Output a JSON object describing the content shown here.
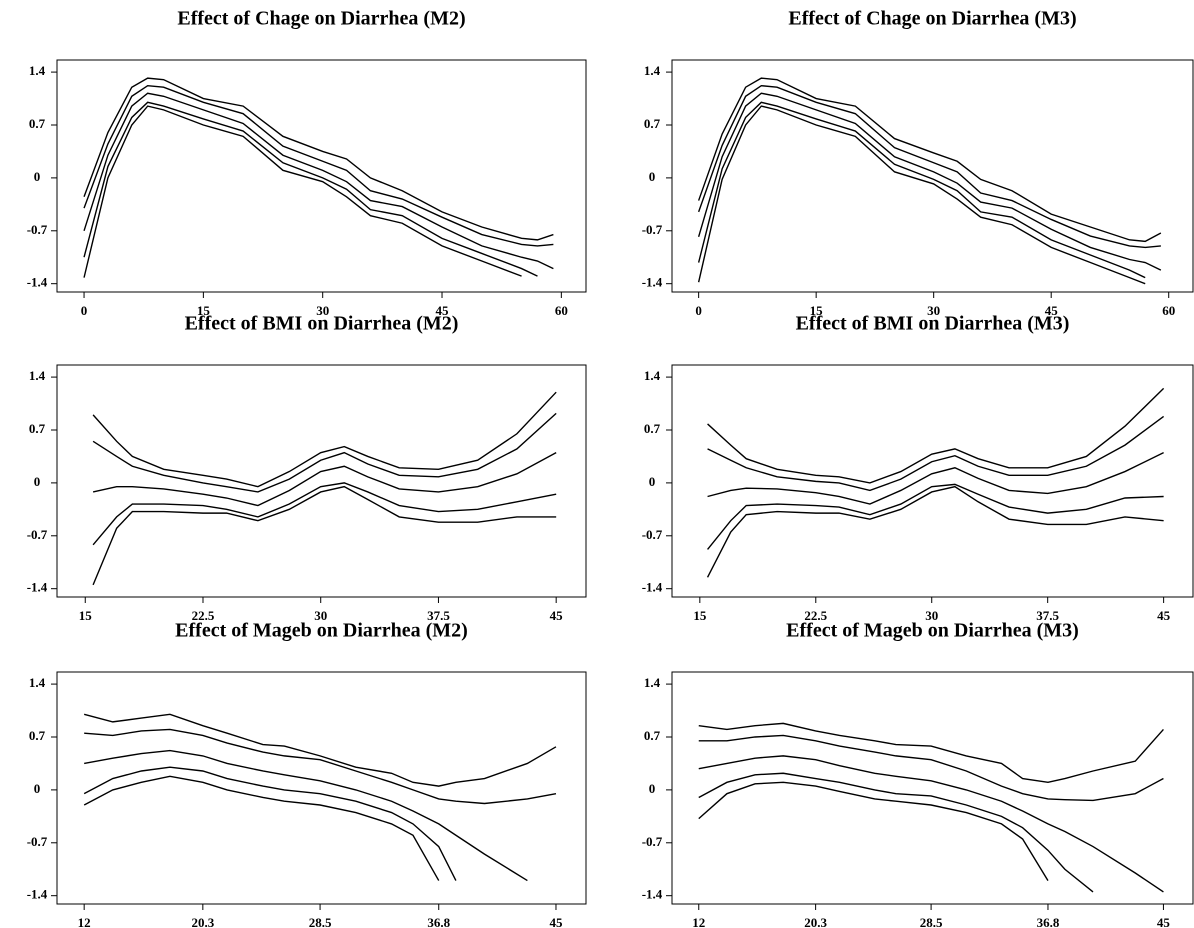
{
  "chart_data": [
    {
      "type": "line",
      "title": "Effect of Chage on Diarrhea (M2)",
      "color": "#000000",
      "x": [
        0,
        3,
        6,
        8,
        10,
        15,
        20,
        25,
        30,
        33,
        36,
        40,
        45,
        50,
        55,
        57,
        59
      ],
      "xlim": [
        -3.4,
        63.1
      ],
      "xticks": [
        0,
        15,
        30,
        45,
        60
      ],
      "ylim": [
        -1.51,
        1.56
      ],
      "yticks": [
        -1.4,
        -0.7,
        0,
        0.7,
        1.4
      ],
      "series": [
        {
          "values": [
            -0.25,
            0.6,
            1.2,
            1.32,
            1.3,
            1.05,
            0.95,
            0.55,
            0.35,
            0.25,
            0,
            -0.17,
            -0.45,
            -0.65,
            -0.8,
            -0.82,
            -0.75
          ]
        },
        {
          "values": [
            -0.4,
            0.45,
            1.08,
            1.22,
            1.2,
            1.0,
            0.85,
            0.42,
            0.22,
            0.1,
            -0.17,
            -0.28,
            -0.52,
            -0.75,
            -0.88,
            -0.9,
            -0.88
          ]
        },
        {
          "values": [
            -0.7,
            0.3,
            0.95,
            1.12,
            1.08,
            0.9,
            0.72,
            0.3,
            0.1,
            -0.05,
            -0.3,
            -0.38,
            -0.65,
            -0.9,
            -1.05,
            -1.1,
            -1.2
          ]
        },
        {
          "values": [
            -1.05,
            0.15,
            0.8,
            1.0,
            0.95,
            0.78,
            0.62,
            0.2,
            0.0,
            -0.15,
            -0.42,
            -0.5,
            -0.8,
            -1.0,
            -1.2,
            -1.3,
            null
          ]
        },
        {
          "values": [
            -1.32,
            0.0,
            0.7,
            0.95,
            0.9,
            0.7,
            0.55,
            0.1,
            -0.05,
            -0.25,
            -0.5,
            -0.6,
            -0.9,
            -1.1,
            -1.3,
            null,
            null
          ]
        }
      ]
    },
    {
      "type": "line",
      "title": "Effect of Chage on Diarrhea (M3)",
      "color": "#000000",
      "x": [
        0,
        3,
        6,
        8,
        10,
        15,
        20,
        25,
        30,
        33,
        36,
        40,
        45,
        50,
        55,
        57,
        59
      ],
      "xlim": [
        -3.4,
        63.1
      ],
      "xticks": [
        0,
        15,
        30,
        45,
        60
      ],
      "ylim": [
        -1.51,
        1.56
      ],
      "yticks": [
        -1.4,
        -0.7,
        0,
        0.7,
        1.4
      ],
      "series": [
        {
          "values": [
            -0.3,
            0.58,
            1.2,
            1.32,
            1.3,
            1.05,
            0.95,
            0.52,
            0.33,
            0.22,
            -0.02,
            -0.17,
            -0.48,
            -0.65,
            -0.82,
            -0.84,
            -0.73
          ]
        },
        {
          "values": [
            -0.45,
            0.43,
            1.08,
            1.22,
            1.2,
            1.0,
            0.85,
            0.4,
            0.2,
            0.08,
            -0.2,
            -0.3,
            -0.55,
            -0.77,
            -0.9,
            -0.92,
            -0.9
          ]
        },
        {
          "values": [
            -0.78,
            0.28,
            0.95,
            1.12,
            1.08,
            0.9,
            0.72,
            0.28,
            0.08,
            -0.07,
            -0.32,
            -0.4,
            -0.68,
            -0.92,
            -1.08,
            -1.12,
            -1.22
          ]
        },
        {
          "values": [
            -1.12,
            0.12,
            0.8,
            1.0,
            0.95,
            0.78,
            0.62,
            0.18,
            -0.02,
            -0.17,
            -0.45,
            -0.52,
            -0.82,
            -1.02,
            -1.22,
            -1.32,
            null
          ]
        },
        {
          "values": [
            -1.38,
            -0.02,
            0.7,
            0.95,
            0.9,
            0.7,
            0.55,
            0.08,
            -0.08,
            -0.28,
            -0.52,
            -0.62,
            -0.92,
            -1.12,
            -1.32,
            -1.4,
            null
          ]
        }
      ]
    },
    {
      "type": "line",
      "title": "Effect of BMI on Diarrhea (M2)",
      "color": "#000000",
      "x": [
        15.5,
        17,
        18,
        20,
        22.5,
        24,
        26,
        28,
        30,
        31.5,
        33,
        35,
        37.5,
        40,
        42.5,
        45
      ],
      "xlim": [
        13.2,
        46.9
      ],
      "xticks": [
        15,
        22.5,
        30,
        37.5,
        45
      ],
      "ylim": [
        -1.51,
        1.56
      ],
      "yticks": [
        -1.4,
        -0.7,
        0,
        0.7,
        1.4
      ],
      "series": [
        {
          "values": [
            0.9,
            0.55,
            0.35,
            0.18,
            0.1,
            0.05,
            -0.05,
            0.15,
            0.4,
            0.48,
            0.35,
            0.2,
            0.18,
            0.3,
            0.65,
            1.2
          ]
        },
        {
          "values": [
            0.55,
            0.35,
            0.22,
            0.1,
            0,
            -0.05,
            -0.12,
            0.05,
            0.3,
            0.4,
            0.25,
            0.1,
            0.08,
            0.18,
            0.45,
            0.92
          ]
        },
        {
          "values": [
            -0.12,
            -0.05,
            -0.05,
            -0.08,
            -0.15,
            -0.2,
            -0.3,
            -0.1,
            0.15,
            0.22,
            0.08,
            -0.08,
            -0.12,
            -0.05,
            0.12,
            0.4
          ]
        },
        {
          "values": [
            -0.82,
            -0.45,
            -0.28,
            -0.28,
            -0.3,
            -0.35,
            -0.45,
            -0.28,
            -0.05,
            0.0,
            -0.12,
            -0.3,
            -0.38,
            -0.35,
            -0.25,
            -0.15
          ]
        },
        {
          "values": [
            -1.35,
            -0.6,
            -0.38,
            -0.38,
            -0.4,
            -0.4,
            -0.5,
            -0.35,
            -0.12,
            -0.05,
            -0.22,
            -0.45,
            -0.52,
            -0.52,
            -0.45,
            -0.45
          ]
        }
      ]
    },
    {
      "type": "line",
      "title": "Effect of BMI on Diarrhea (M3)",
      "color": "#000000",
      "x": [
        15.5,
        17,
        18,
        20,
        22.5,
        24,
        26,
        28,
        30,
        31.5,
        33,
        35,
        37.5,
        40,
        42.5,
        45
      ],
      "xlim": [
        13.2,
        46.9
      ],
      "xticks": [
        15,
        22.5,
        30,
        37.5,
        45
      ],
      "ylim": [
        -1.51,
        1.56
      ],
      "yticks": [
        -1.4,
        -0.7,
        0,
        0.7,
        1.4
      ],
      "series": [
        {
          "values": [
            0.78,
            0.5,
            0.32,
            0.18,
            0.1,
            0.08,
            0.0,
            0.15,
            0.38,
            0.45,
            0.32,
            0.2,
            0.2,
            0.35,
            0.75,
            1.25
          ]
        },
        {
          "values": [
            0.45,
            0.3,
            0.2,
            0.08,
            0.02,
            0.0,
            -0.1,
            0.05,
            0.28,
            0.36,
            0.22,
            0.1,
            0.1,
            0.22,
            0.5,
            0.88
          ]
        },
        {
          "values": [
            -0.18,
            -0.1,
            -0.07,
            -0.08,
            -0.13,
            -0.18,
            -0.28,
            -0.1,
            0.12,
            0.2,
            0.06,
            -0.1,
            -0.14,
            -0.05,
            0.15,
            0.4
          ]
        },
        {
          "values": [
            -0.88,
            -0.5,
            -0.3,
            -0.28,
            -0.3,
            -0.32,
            -0.42,
            -0.28,
            -0.05,
            -0.02,
            -0.15,
            -0.32,
            -0.4,
            -0.35,
            -0.2,
            -0.18
          ]
        },
        {
          "values": [
            -1.25,
            -0.65,
            -0.42,
            -0.38,
            -0.4,
            -0.4,
            -0.48,
            -0.35,
            -0.12,
            -0.05,
            -0.25,
            -0.48,
            -0.55,
            -0.55,
            -0.45,
            -0.5
          ]
        }
      ]
    },
    {
      "type": "line",
      "title": "Effect of Mageb on Diarrhea (M2)",
      "color": "#000000",
      "x": [
        12,
        14,
        16,
        18,
        20.3,
        22,
        24.5,
        26,
        28.5,
        31,
        33.5,
        35,
        36.8,
        38,
        40,
        43,
        45
      ],
      "xlim": [
        10.1,
        47.1
      ],
      "xticks": [
        12,
        20.3,
        28.5,
        36.8,
        45
      ],
      "ylim": [
        -1.51,
        1.56
      ],
      "yticks": [
        -1.4,
        -0.7,
        0,
        0.7,
        1.4
      ],
      "series": [
        {
          "values": [
            1.0,
            0.9,
            0.95,
            1.0,
            0.85,
            0.75,
            0.6,
            0.58,
            0.45,
            0.3,
            0.22,
            0.1,
            0.05,
            0.1,
            0.15,
            0.35,
            0.57
          ]
        },
        {
          "values": [
            0.75,
            0.72,
            0.78,
            0.8,
            0.72,
            0.62,
            0.5,
            0.45,
            0.4,
            0.25,
            0.1,
            0,
            -0.12,
            -0.15,
            -0.18,
            -0.12,
            -0.05
          ]
        },
        {
          "values": [
            0.35,
            0.42,
            0.48,
            0.52,
            0.45,
            0.35,
            0.25,
            0.2,
            0.12,
            0.0,
            -0.15,
            -0.28,
            -0.45,
            -0.6,
            -0.85,
            -1.2,
            null
          ]
        },
        {
          "values": [
            -0.05,
            0.15,
            0.25,
            0.3,
            0.25,
            0.15,
            0.05,
            0,
            -0.05,
            -0.15,
            -0.3,
            -0.45,
            -0.75,
            -1.2,
            null,
            null,
            null
          ]
        },
        {
          "values": [
            -0.2,
            0.0,
            0.1,
            0.18,
            0.1,
            0.0,
            -0.1,
            -0.15,
            -0.2,
            -0.3,
            -0.45,
            -0.6,
            -1.2,
            null,
            null,
            null,
            null
          ]
        }
      ]
    },
    {
      "type": "line",
      "title": "Effect of Mageb on Diarrhea (M3)",
      "color": "#000000",
      "x": [
        12,
        14,
        16,
        18,
        20.3,
        22,
        24.5,
        26,
        28.5,
        31,
        33.5,
        35,
        36.8,
        38,
        40,
        43,
        45
      ],
      "xlim": [
        10.1,
        47.1
      ],
      "xticks": [
        12,
        20.3,
        28.5,
        36.8,
        45
      ],
      "ylim": [
        -1.51,
        1.56
      ],
      "yticks": [
        -1.4,
        -0.7,
        0,
        0.7,
        1.4
      ],
      "series": [
        {
          "values": [
            0.85,
            0.8,
            0.85,
            0.88,
            0.78,
            0.72,
            0.65,
            0.6,
            0.58,
            0.45,
            0.35,
            0.15,
            0.1,
            0.15,
            0.25,
            0.38,
            0.8
          ]
        },
        {
          "values": [
            0.65,
            0.65,
            0.7,
            0.72,
            0.65,
            0.58,
            0.5,
            0.45,
            0.4,
            0.25,
            0.05,
            -0.05,
            -0.12,
            -0.13,
            -0.14,
            -0.05,
            0.15
          ]
        },
        {
          "values": [
            0.28,
            0.35,
            0.42,
            0.45,
            0.4,
            0.32,
            0.22,
            0.18,
            0.12,
            0,
            -0.15,
            -0.28,
            -0.45,
            -0.55,
            -0.75,
            -1.1,
            -1.35
          ]
        },
        {
          "values": [
            -0.1,
            0.1,
            0.2,
            0.22,
            0.15,
            0.1,
            0.0,
            -0.05,
            -0.08,
            -0.2,
            -0.35,
            -0.5,
            -0.8,
            -1.05,
            -1.35,
            null,
            null
          ]
        },
        {
          "values": [
            -0.38,
            -0.05,
            0.08,
            0.1,
            0.05,
            -0.02,
            -0.12,
            -0.15,
            -0.2,
            -0.3,
            -0.45,
            -0.65,
            -1.2,
            null,
            null,
            null,
            null
          ]
        }
      ]
    }
  ]
}
